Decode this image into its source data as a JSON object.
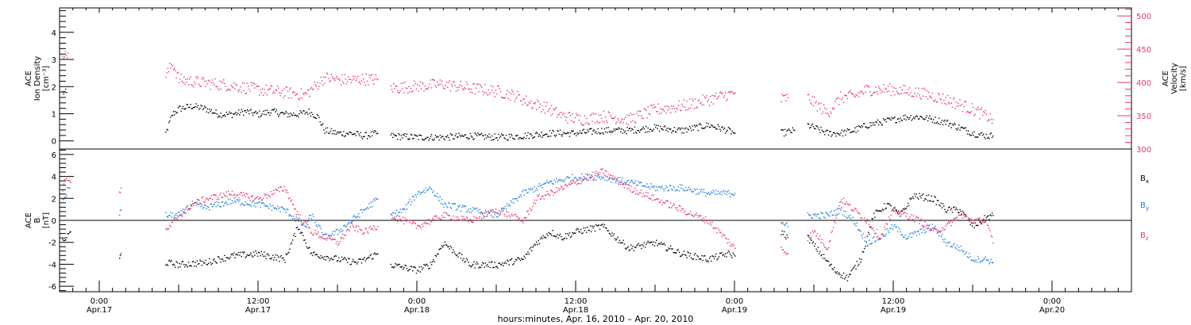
{
  "colors": {
    "black": "#000000",
    "pink": "#e8366a",
    "blue": "#1e7fd9"
  },
  "chart_data": {
    "type": "scatter",
    "xlabel": "hours:minutes, Apr. 16, 2010 – Apr. 20, 2010",
    "x_ticks": [
      {
        "time": "0:00",
        "date": "Apr.17",
        "hour": 24
      },
      {
        "time": "12:00",
        "date": "Apr.17",
        "hour": 36
      },
      {
        "time": "0:00",
        "date": "Apr.18",
        "hour": 48
      },
      {
        "time": "12:00",
        "date": "Apr.18",
        "hour": 60
      },
      {
        "time": "0:00",
        "date": "Apr.19",
        "hour": 72
      },
      {
        "time": "12:00",
        "date": "Apr.19",
        "hour": 84
      },
      {
        "time": "0:00",
        "date": "Apr.20",
        "hour": 96
      }
    ],
    "xlim_hours": [
      21.0,
      102.0
    ],
    "panels": [
      {
        "name": "density_velocity",
        "ylabel_left": [
          "ACE",
          "Ion Density",
          "[cm⁻³]"
        ],
        "ylim_left": [
          -0.3,
          4.9
        ],
        "yticks_left": [
          "0",
          "1",
          "2",
          "3",
          "4"
        ],
        "ylabel_right": [
          "ACE",
          "Velocity",
          "[km/s]"
        ],
        "ylim_right": [
          300,
          512
        ],
        "yticks_right": [
          "300",
          "350",
          "400",
          "450",
          "500"
        ],
        "series": [
          {
            "axis": "left",
            "color_key": "black",
            "segments": [
              {
                "hours": [
                  21.2,
                  21.5
                ],
                "values": [
                  1.8,
                  1.8
                ]
              },
              {
                "hours": [
                  29.0,
                  29.5,
                  30.0,
                  31.0,
                  32.0,
                  33.0,
                  34.0,
                  35.0,
                  36.0,
                  37.0,
                  38.0,
                  39.0,
                  39.8,
                  40.5,
                  41.0,
                  42.0,
                  43.0,
                  44.0,
                  45.0
                ],
                "values": [
                  0.3,
                  1.0,
                  1.2,
                  1.3,
                  1.2,
                  1.0,
                  1.0,
                  1.1,
                  1.0,
                  1.1,
                  1.0,
                  1.0,
                  1.1,
                  0.9,
                  0.4,
                  0.3,
                  0.3,
                  0.2,
                  0.3
                ]
              },
              {
                "hours": [
                  46.0,
                  48.0,
                  50.0,
                  52.0,
                  54.0,
                  56.0,
                  58.0,
                  60.0,
                  62.0,
                  64.0,
                  66.0,
                  68.0,
                  70.0,
                  71.5,
                  72.0
                ],
                "values": [
                  0.2,
                  0.15,
                  0.15,
                  0.2,
                  0.15,
                  0.2,
                  0.3,
                  0.3,
                  0.4,
                  0.4,
                  0.5,
                  0.4,
                  0.6,
                  0.4,
                  0.3
                ]
              },
              {
                "hours": [
                  75.5,
                  76.5
                ],
                "values": [
                  0.3,
                  0.4
                ]
              },
              {
                "hours": [
                  77.5,
                  78.0,
                  79.0,
                  80.0,
                  81.0,
                  82.0,
                  83.0,
                  84.0,
                  85.0,
                  86.0,
                  87.0,
                  88.0,
                  89.0,
                  90.0,
                  91.0,
                  91.5
                ],
                "values": [
                  0.6,
                  0.5,
                  0.3,
                  0.3,
                  0.4,
                  0.6,
                  0.7,
                  0.8,
                  0.9,
                  0.9,
                  0.8,
                  0.7,
                  0.5,
                  0.3,
                  0.2,
                  0.2
                ]
              }
            ]
          },
          {
            "axis": "right",
            "color_key": "pink",
            "segments": [
              {
                "hours": [
                  21.2,
                  21.4,
                  21.6
                ],
                "values": [
                  448,
                  440,
                  445
                ]
              },
              {
                "hours": [
                  29.0,
                  29.5,
                  30.0,
                  32.0,
                  34.0,
                  36.0,
                  38.0,
                  39.5,
                  40.0,
                  41.0,
                  42.0,
                  43.0,
                  44.0,
                  45.0
                ],
                "values": [
                  410,
                  430,
                  405,
                  400,
                  396,
                  390,
                  386,
                  382,
                  390,
                  408,
                  405,
                  404,
                  406,
                  405
                ]
              },
              {
                "hours": [
                  46.0,
                  48.0,
                  50.0,
                  52.0,
                  54.0,
                  55.5,
                  56.5,
                  57.5,
                  59.0,
                  60.5,
                  62.0,
                  64.0,
                  66.0,
                  68.0,
                  70.0,
                  72.0
                ],
                "values": [
                  392,
                  395,
                  398,
                  392,
                  388,
                  380,
                  370,
                  365,
                  350,
                  345,
                  350,
                  345,
                  360,
                  365,
                  375,
                  385
                ]
              },
              {
                "hours": [
                  75.5,
                  76.0
                ],
                "values": [
                  375,
                  378
                ]
              },
              {
                "hours": [
                  77.5,
                  78.0,
                  79.0,
                  80.0,
                  81.0,
                  82.0,
                  84.0,
                  86.0,
                  88.0,
                  90.0,
                  91.5
                ],
                "values": [
                  378,
                  370,
                  355,
                  378,
                  380,
                  390,
                  390,
                  385,
                  375,
                  360,
                  345
                ]
              }
            ]
          }
        ]
      },
      {
        "name": "magnetic_field",
        "ylabel_left": [
          "ACE",
          "B",
          "[nT]"
        ],
        "ylim": [
          -6.5,
          6.5
        ],
        "yticks": [
          "-6",
          "-4",
          "-2",
          "0",
          "2",
          "4",
          "6"
        ],
        "zero_line": true,
        "legend": [
          {
            "label": "B",
            "sub": "x",
            "color_key": "black"
          },
          {
            "label": "B",
            "sub": "y",
            "color_key": "blue"
          },
          {
            "label": "B",
            "sub": "z",
            "color_key": "pink"
          }
        ],
        "series": [
          {
            "name": "Bx",
            "color_key": "black",
            "segments": [
              {
                "hours": [
                  21.2,
                  21.5,
                  21.8
                ],
                "values": [
                  -2.0,
                  -1.5,
                  -1.0
                ]
              },
              {
                "hours": [
                  25.5,
                  25.6
                ],
                "values": [
                  -3.5,
                  -3.0
                ]
              },
              {
                "hours": [
                  29.0,
                  30.0,
                  32.0,
                  34.0,
                  36.0,
                  38.0,
                  39.0,
                  40.0,
                  42.0,
                  43.5,
                  45.0
                ],
                "values": [
                  -3.8,
                  -4.0,
                  -3.8,
                  -3.2,
                  -3.0,
                  -3.5,
                  -0.5,
                  -3.0,
                  -3.5,
                  -3.8,
                  -3.0
                ]
              },
              {
                "hours": [
                  46.0,
                  48.0,
                  49.0,
                  50.0,
                  52.0,
                  54.0,
                  56.0,
                  57.0,
                  58.0,
                  59.0,
                  60.0,
                  62.0,
                  64.0,
                  66.0,
                  68.0,
                  70.0,
                  71.5,
                  72.0
                ],
                "values": [
                  -4.0,
                  -4.5,
                  -4.0,
                  -2.0,
                  -4.0,
                  -4.0,
                  -3.5,
                  -2.0,
                  -1.0,
                  -1.5,
                  -1.0,
                  -0.5,
                  -2.5,
                  -2.0,
                  -3.0,
                  -3.5,
                  -3.0,
                  -3.2
                ]
              },
              {
                "hours": [
                  75.5,
                  76.0
                ],
                "values": [
                  -1.0,
                  -1.5
                ]
              },
              {
                "hours": [
                  77.5,
                  78.5,
                  79.5,
                  80.5,
                  81.5,
                  82.5,
                  83.5,
                  84.5,
                  85.5,
                  87.0,
                  88.0,
                  89.0,
                  90.0,
                  91.0,
                  91.5
                ],
                "values": [
                  -1.5,
                  -3.0,
                  -4.5,
                  -5.2,
                  -3.5,
                  0.5,
                  1.5,
                  0.5,
                  2.3,
                  2.0,
                  1.0,
                  1.0,
                  -0.5,
                  0.3,
                  0.5
                ]
              }
            ]
          },
          {
            "name": "By",
            "color_key": "blue",
            "segments": [
              {
                "hours": [
                  21.2,
                  21.5,
                  21.8
                ],
                "values": [
                  1.8,
                  2.5,
                  3.5
                ]
              },
              {
                "hours": [
                  25.5,
                  25.6
                ],
                "values": [
                  0.5,
                  1.0
                ]
              },
              {
                "hours": [
                  29.0,
                  30.0,
                  31.0,
                  32.0,
                  34.0,
                  36.0,
                  38.0,
                  39.5,
                  40.0,
                  41.0,
                  42.0,
                  43.0,
                  44.0,
                  45.0
                ],
                "values": [
                  0.5,
                  0.5,
                  1.5,
                  1.2,
                  1.8,
                  1.5,
                  1.0,
                  -0.5,
                  0.5,
                  -1.5,
                  -1.0,
                  0.0,
                  1.0,
                  2.0
                ]
              },
              {
                "hours": [
                  46.0,
                  47.0,
                  48.0,
                  49.0,
                  50.0,
                  52.0,
                  54.0,
                  56.0,
                  57.0,
                  58.0,
                  60.0,
                  62.0,
                  64.0,
                  66.0,
                  68.0,
                  70.0,
                  72.0
                ],
                "values": [
                  0.5,
                  1.0,
                  2.5,
                  3.0,
                  1.5,
                  1.0,
                  0.5,
                  2.5,
                  3.0,
                  3.5,
                  4.0,
                  4.0,
                  3.5,
                  3.0,
                  3.0,
                  2.5,
                  2.5
                ]
              },
              {
                "hours": [
                  75.5,
                  76.0
                ],
                "values": [
                  0.0,
                  -0.5
                ]
              },
              {
                "hours": [
                  77.5,
                  78.0,
                  79.0,
                  80.0,
                  81.0,
                  82.0,
                  83.0,
                  84.0,
                  85.0,
                  86.0,
                  87.0,
                  88.0,
                  89.0,
                  90.0,
                  91.0,
                  91.5
                ],
                "values": [
                  0.5,
                  0.5,
                  0.5,
                  1.0,
                  0.0,
                  -2.0,
                  -1.5,
                  -0.5,
                  -1.5,
                  -1.0,
                  -0.5,
                  -2.0,
                  -2.5,
                  -3.5,
                  -3.5,
                  -3.8
                ]
              }
            ]
          },
          {
            "name": "Bz",
            "color_key": "pink",
            "segments": [
              {
                "hours": [
                  21.2,
                  21.5,
                  21.8
                ],
                "values": [
                  3.0,
                  4.0,
                  3.5
                ]
              },
              {
                "hours": [
                  25.5,
                  25.6
                ],
                "values": [
                  2.5,
                  3.0
                ]
              },
              {
                "hours": [
                  29.0,
                  30.0,
                  31.0,
                  32.0,
                  34.0,
                  36.0,
                  38.0,
                  39.0,
                  40.0,
                  41.0,
                  42.0,
                  43.0,
                  44.0,
                  45.0
                ],
                "values": [
                  -1.0,
                  0.5,
                  1.5,
                  2.0,
                  2.5,
                  2.0,
                  3.0,
                  0.5,
                  -1.0,
                  -1.5,
                  -2.0,
                  -0.5,
                  -1.0,
                  -0.5
                ]
              },
              {
                "hours": [
                  46.0,
                  47.0,
                  48.0,
                  50.0,
                  52.0,
                  54.0,
                  56.0,
                  57.0,
                  58.0,
                  60.0,
                  61.0,
                  62.0,
                  64.0,
                  66.0,
                  68.0,
                  70.0,
                  72.0
                ],
                "values": [
                  0.5,
                  0.0,
                  -0.5,
                  0.5,
                  0.0,
                  1.0,
                  0.0,
                  2.0,
                  2.5,
                  3.5,
                  4.0,
                  4.5,
                  3.0,
                  2.0,
                  1.0,
                  0.0,
                  -2.5
                ]
              },
              {
                "hours": [
                  75.5,
                  76.0
                ],
                "values": [
                  -2.5,
                  -3.0
                ]
              },
              {
                "hours": [
                  77.5,
                  78.0,
                  79.0,
                  80.0,
                  81.0,
                  82.0,
                  83.0,
                  84.0,
                  85.0,
                  86.0,
                  87.0,
                  88.0,
                  89.0,
                  90.0,
                  91.0,
                  91.5
                ],
                "values": [
                  -1.5,
                  -1.0,
                  -2.5,
                  2.0,
                  1.0,
                  0.0,
                  -1.5,
                  1.0,
                  0.5,
                  0.0,
                  -1.0,
                  -0.5,
                  0.5,
                  0.0,
                  0.0,
                  -2.0
                ]
              }
            ]
          }
        ]
      }
    ]
  }
}
